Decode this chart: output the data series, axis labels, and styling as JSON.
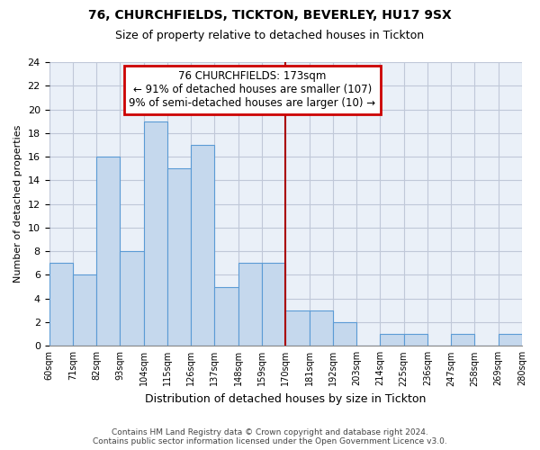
{
  "title": "76, CHURCHFIELDS, TICKTON, BEVERLEY, HU17 9SX",
  "subtitle": "Size of property relative to detached houses in Tickton",
  "xlabel": "Distribution of detached houses by size in Tickton",
  "ylabel": "Number of detached properties",
  "bin_edges": [
    60,
    71,
    82,
    93,
    104,
    115,
    126,
    137,
    148,
    159,
    170,
    181,
    192,
    203,
    214,
    225,
    236,
    247,
    258,
    269,
    280
  ],
  "bin_labels": [
    "60sqm",
    "71sqm",
    "82sqm",
    "93sqm",
    "104sqm",
    "115sqm",
    "126sqm",
    "137sqm",
    "148sqm",
    "159sqm",
    "170sqm",
    "181sqm",
    "192sqm",
    "203sqm",
    "214sqm",
    "225sqm",
    "236sqm",
    "247sqm",
    "258sqm",
    "269sqm",
    "280sqm"
  ],
  "counts": [
    7,
    6,
    16,
    8,
    19,
    15,
    17,
    5,
    7,
    7,
    3,
    3,
    2,
    0,
    1,
    1,
    0,
    1,
    0,
    1
  ],
  "bar_color": "#c5d8ed",
  "bar_edge_color": "#5b9bd5",
  "ax_bg_color": "#eaf0f8",
  "property_line_x": 170,
  "ylim": [
    0,
    24
  ],
  "yticks": [
    0,
    2,
    4,
    6,
    8,
    10,
    12,
    14,
    16,
    18,
    20,
    22,
    24
  ],
  "annotation_title": "76 CHURCHFIELDS: 173sqm",
  "annotation_line1": "← 91% of detached houses are smaller (107)",
  "annotation_line2": "9% of semi-detached houses are larger (10) →",
  "annotation_box_color": "#ffffff",
  "annotation_box_edge": "#cc0000",
  "footer_line1": "Contains HM Land Registry data © Crown copyright and database right 2024.",
  "footer_line2": "Contains public sector information licensed under the Open Government Licence v3.0.",
  "bg_color": "#ffffff",
  "grid_color": "#c0c8d8",
  "property_line_color": "#aa0000",
  "title_fontsize": 10,
  "subtitle_fontsize": 9
}
